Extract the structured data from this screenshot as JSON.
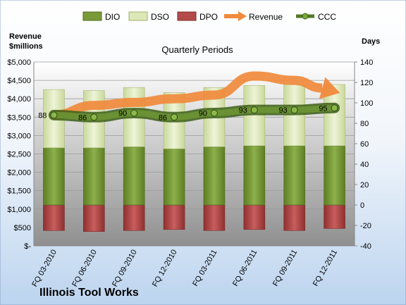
{
  "chart_data": {
    "type": "bar",
    "title": "Quarterly Periods",
    "company": "Illinois Tool Works",
    "left_axis_label_line1": "Revenue",
    "left_axis_label_line2": "$millions",
    "right_axis_label": "Days",
    "categories": [
      "FQ 03-2010",
      "FQ 06-2010",
      "FQ 09-2010",
      "FQ 12-2010",
      "FQ 03-2011",
      "FQ 06-2011",
      "FQ 09-2011",
      "FQ 12-2011"
    ],
    "left_ylim": [
      0,
      5000
    ],
    "right_ylim": [
      -40,
      140
    ],
    "left_ticks": [
      "$-",
      "$500",
      "$1,000",
      "$1,500",
      "$2,000",
      "$2,500",
      "$3,000",
      "$3,500",
      "$4,000",
      "$4,500",
      "$5,000"
    ],
    "right_ticks": [
      "-40",
      "-20",
      "0",
      "20",
      "40",
      "60",
      "80",
      "100",
      "120",
      "140"
    ],
    "legend": [
      "DIO",
      "DSO",
      "DPO",
      "Revenue",
      "CCC"
    ],
    "series": [
      {
        "name": "DIO",
        "axis": "right",
        "values": [
          56,
          56,
          57,
          55,
          57,
          58,
          58,
          58
        ]
      },
      {
        "name": "DSO",
        "axis": "right",
        "values": [
          57,
          56,
          58,
          55,
          58,
          59,
          60,
          60
        ]
      },
      {
        "name": "DPO",
        "axis": "right",
        "values": [
          -25,
          -26,
          -25,
          -24,
          -25,
          -24,
          -25,
          -23
        ]
      },
      {
        "name": "Revenue",
        "axis": "left",
        "values": [
          3560,
          3820,
          3900,
          4000,
          4100,
          4620,
          4500,
          4200
        ]
      },
      {
        "name": "CCC",
        "axis": "right",
        "values": [
          88,
          86,
          90,
          86,
          90,
          93,
          93,
          95
        ]
      }
    ],
    "ccc_labels": [
      "88",
      "86",
      "90",
      "86",
      "90",
      "93",
      "93",
      "95"
    ],
    "colors": {
      "DIO": "#7a9a3a",
      "DSO": "#dde8b8",
      "DPO": "#b54a4a",
      "Revenue": "#f08a3c",
      "CCC": "#4e7a24"
    }
  }
}
